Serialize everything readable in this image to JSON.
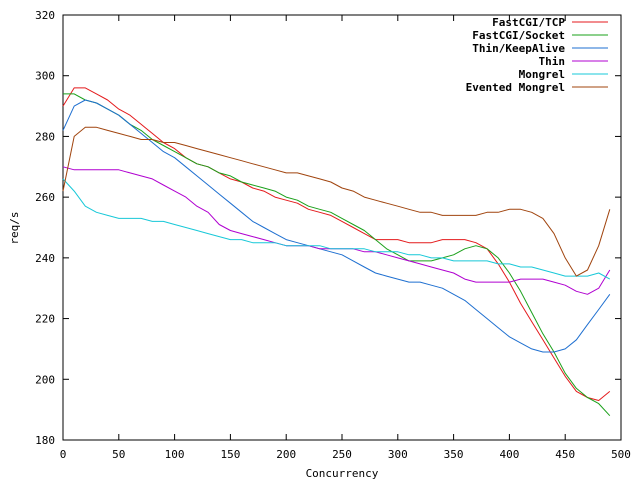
{
  "chart_data": {
    "type": "line",
    "title": "",
    "xlabel": "Concurrency",
    "ylabel": "req/s",
    "xlim": [
      0,
      500
    ],
    "ylim": [
      180,
      320
    ],
    "xticks": [
      0,
      50,
      100,
      150,
      200,
      250,
      300,
      350,
      400,
      450,
      500
    ],
    "yticks": [
      180,
      200,
      220,
      240,
      260,
      280,
      300,
      320
    ],
    "grid": false,
    "legend_position": "top-right",
    "x": [
      0,
      10,
      20,
      30,
      40,
      50,
      60,
      70,
      80,
      90,
      100,
      110,
      120,
      130,
      140,
      150,
      160,
      170,
      180,
      190,
      200,
      210,
      220,
      230,
      240,
      250,
      260,
      270,
      280,
      290,
      300,
      310,
      320,
      330,
      340,
      350,
      360,
      370,
      380,
      390,
      400,
      410,
      420,
      430,
      440,
      450,
      460,
      470,
      480,
      490
    ],
    "series": [
      {
        "name": "FastCGI/TCP",
        "color": "#e41a1c",
        "values": [
          290,
          296,
          296,
          294,
          292,
          289,
          287,
          284,
          281,
          278,
          276,
          273,
          271,
          270,
          268,
          266,
          265,
          263,
          262,
          260,
          259,
          258,
          256,
          255,
          254,
          252,
          250,
          248,
          246,
          246,
          246,
          245,
          245,
          245,
          246,
          246,
          246,
          245,
          243,
          238,
          232,
          225,
          219,
          213,
          207,
          201,
          196,
          194,
          193,
          196
        ]
      },
      {
        "name": "FastCGI/Socket",
        "color": "#1aa01a",
        "values": [
          294,
          294,
          292,
          291,
          289,
          287,
          284,
          282,
          279,
          277,
          275,
          273,
          271,
          270,
          268,
          267,
          265,
          264,
          263,
          262,
          260,
          259,
          257,
          256,
          255,
          253,
          251,
          249,
          246,
          243,
          241,
          239,
          239,
          239,
          240,
          241,
          243,
          244,
          243,
          240,
          235,
          229,
          222,
          215,
          209,
          202,
          197,
          194,
          192,
          188
        ]
      },
      {
        "name": "Thin/KeepAlive",
        "color": "#1e6fd0",
        "values": [
          282,
          290,
          292,
          291,
          289,
          287,
          284,
          281,
          278,
          275,
          273,
          270,
          267,
          264,
          261,
          258,
          255,
          252,
          250,
          248,
          246,
          245,
          244,
          243,
          242,
          241,
          239,
          237,
          235,
          234,
          233,
          232,
          232,
          231,
          230,
          228,
          226,
          223,
          220,
          217,
          214,
          212,
          210,
          209,
          209,
          210,
          213,
          218,
          223,
          228
        ]
      },
      {
        "name": "Thin",
        "color": "#b000d0",
        "values": [
          270,
          269,
          269,
          269,
          269,
          269,
          268,
          267,
          266,
          264,
          262,
          260,
          257,
          255,
          251,
          249,
          248,
          247,
          246,
          245,
          244,
          244,
          244,
          243,
          243,
          243,
          243,
          242,
          242,
          241,
          240,
          239,
          238,
          237,
          236,
          235,
          233,
          232,
          232,
          232,
          232,
          233,
          233,
          233,
          232,
          231,
          229,
          228,
          230,
          236
        ]
      },
      {
        "name": "Mongrel",
        "color": "#17c8d8",
        "values": [
          266,
          262,
          257,
          255,
          254,
          253,
          253,
          253,
          252,
          252,
          251,
          250,
          249,
          248,
          247,
          246,
          246,
          245,
          245,
          245,
          244,
          244,
          244,
          244,
          243,
          243,
          243,
          243,
          242,
          242,
          242,
          241,
          241,
          240,
          240,
          239,
          239,
          239,
          239,
          238,
          238,
          237,
          237,
          236,
          235,
          234,
          234,
          234,
          235,
          233
        ]
      },
      {
        "name": "Evented Mongrel",
        "color": "#a0440e",
        "values": [
          262,
          280,
          283,
          283,
          282,
          281,
          280,
          279,
          279,
          278,
          278,
          277,
          276,
          275,
          274,
          273,
          272,
          271,
          270,
          269,
          268,
          268,
          267,
          266,
          265,
          263,
          262,
          260,
          259,
          258,
          257,
          256,
          255,
          255,
          254,
          254,
          254,
          254,
          255,
          255,
          256,
          256,
          255,
          253,
          248,
          240,
          234,
          236,
          244,
          256
        ]
      }
    ]
  }
}
